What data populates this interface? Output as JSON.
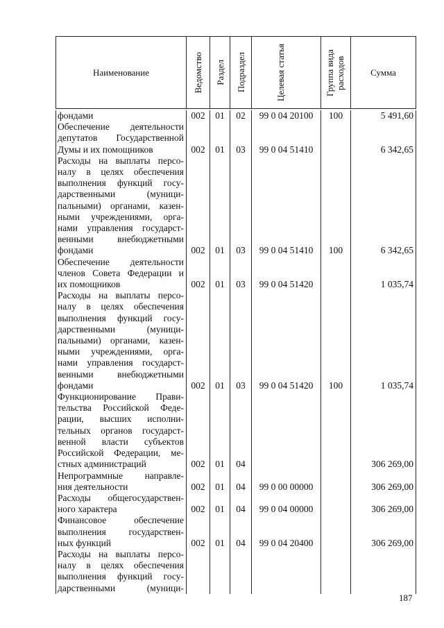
{
  "header": {
    "name": "Наименование",
    "ved": "Ведомство",
    "razdel": "Раздел",
    "podrazdel": "Подраздел",
    "tsel": "Целевая статья",
    "gruppa": "Группа вида расходов",
    "summa": "Сумма"
  },
  "rows": [
    {
      "lines": [
        "фондами"
      ],
      "ved": "002",
      "rz": "01",
      "pr": "02",
      "cs": "99 0 04 20100",
      "vr": "100",
      "sum": "5 491,60"
    },
    {
      "lines": [
        "Обеспечение деятельности",
        "депутатов Государственной",
        "Думы и их помощников"
      ],
      "ved": "002",
      "rz": "01",
      "pr": "03",
      "cs": "99 0 04 51410",
      "vr": "",
      "sum": "6 342,65"
    },
    {
      "lines": [
        "Расходы на выплаты персо-",
        "налу в целях обеспечения",
        "выполнения функций госу-",
        "дарственными (муници-",
        "пальными) органами, казен-",
        "ными учреждениями, орга-",
        "нами управления государст-",
        "венными внебюджетными",
        "фондами"
      ],
      "ved": "002",
      "rz": "01",
      "pr": "03",
      "cs": "99 0 04 51410",
      "vr": "100",
      "sum": "6 342,65"
    },
    {
      "lines": [
        "Обеспечение деятельности",
        "членов Совета Федерации и",
        "их помощников"
      ],
      "ved": "002",
      "rz": "01",
      "pr": "03",
      "cs": "99 0 04 51420",
      "vr": "",
      "sum": "1 035,74"
    },
    {
      "lines": [
        "Расходы на выплаты персо-",
        "налу в целях обеспечения",
        "выполнения функций госу-",
        "дарственными (муници-",
        "пальными) органами, казен-",
        "ными учреждениями, орга-",
        "нами управления государст-",
        "венными внебюджетными",
        "фондами"
      ],
      "ved": "002",
      "rz": "01",
      "pr": "03",
      "cs": "99 0 04 51420",
      "vr": "100",
      "sum": "1 035,74"
    },
    {
      "lines": [
        "Функционирование Прави-",
        "тельства Российской Феде-",
        "рации, высших исполни-",
        "тельных органов государст-",
        "венной власти субъектов",
        "Российской Федерации, ме-",
        "стных администраций"
      ],
      "ved": "002",
      "rz": "01",
      "pr": "04",
      "cs": "",
      "vr": "",
      "sum": "306 269,00"
    },
    {
      "lines": [
        "Непрограммные направле-",
        "ния деятельности"
      ],
      "ved": "002",
      "rz": "01",
      "pr": "04",
      "cs": "99 0 00 00000",
      "vr": "",
      "sum": "306 269,00"
    },
    {
      "lines": [
        "Расходы общегосударствен-",
        "ного характера"
      ],
      "ved": "002",
      "rz": "01",
      "pr": "04",
      "cs": "99 0 04 00000",
      "vr": "",
      "sum": "306 269,00"
    },
    {
      "lines": [
        "Финансовое обеспечение",
        "выполнения государствен-",
        "ных функций"
      ],
      "ved": "002",
      "rz": "01",
      "pr": "04",
      "cs": "99 0 04 20400",
      "vr": "",
      "sum": "306 269,00"
    },
    {
      "lines": [
        "Расходы на выплаты персо-",
        "налу в целях обеспечения",
        "выполнения функций госу-",
        "дарственными (муници-"
      ],
      "ved": "",
      "rz": "",
      "pr": "",
      "cs": "",
      "vr": "",
      "sum": "",
      "continued": true
    }
  ],
  "page_number": "187"
}
